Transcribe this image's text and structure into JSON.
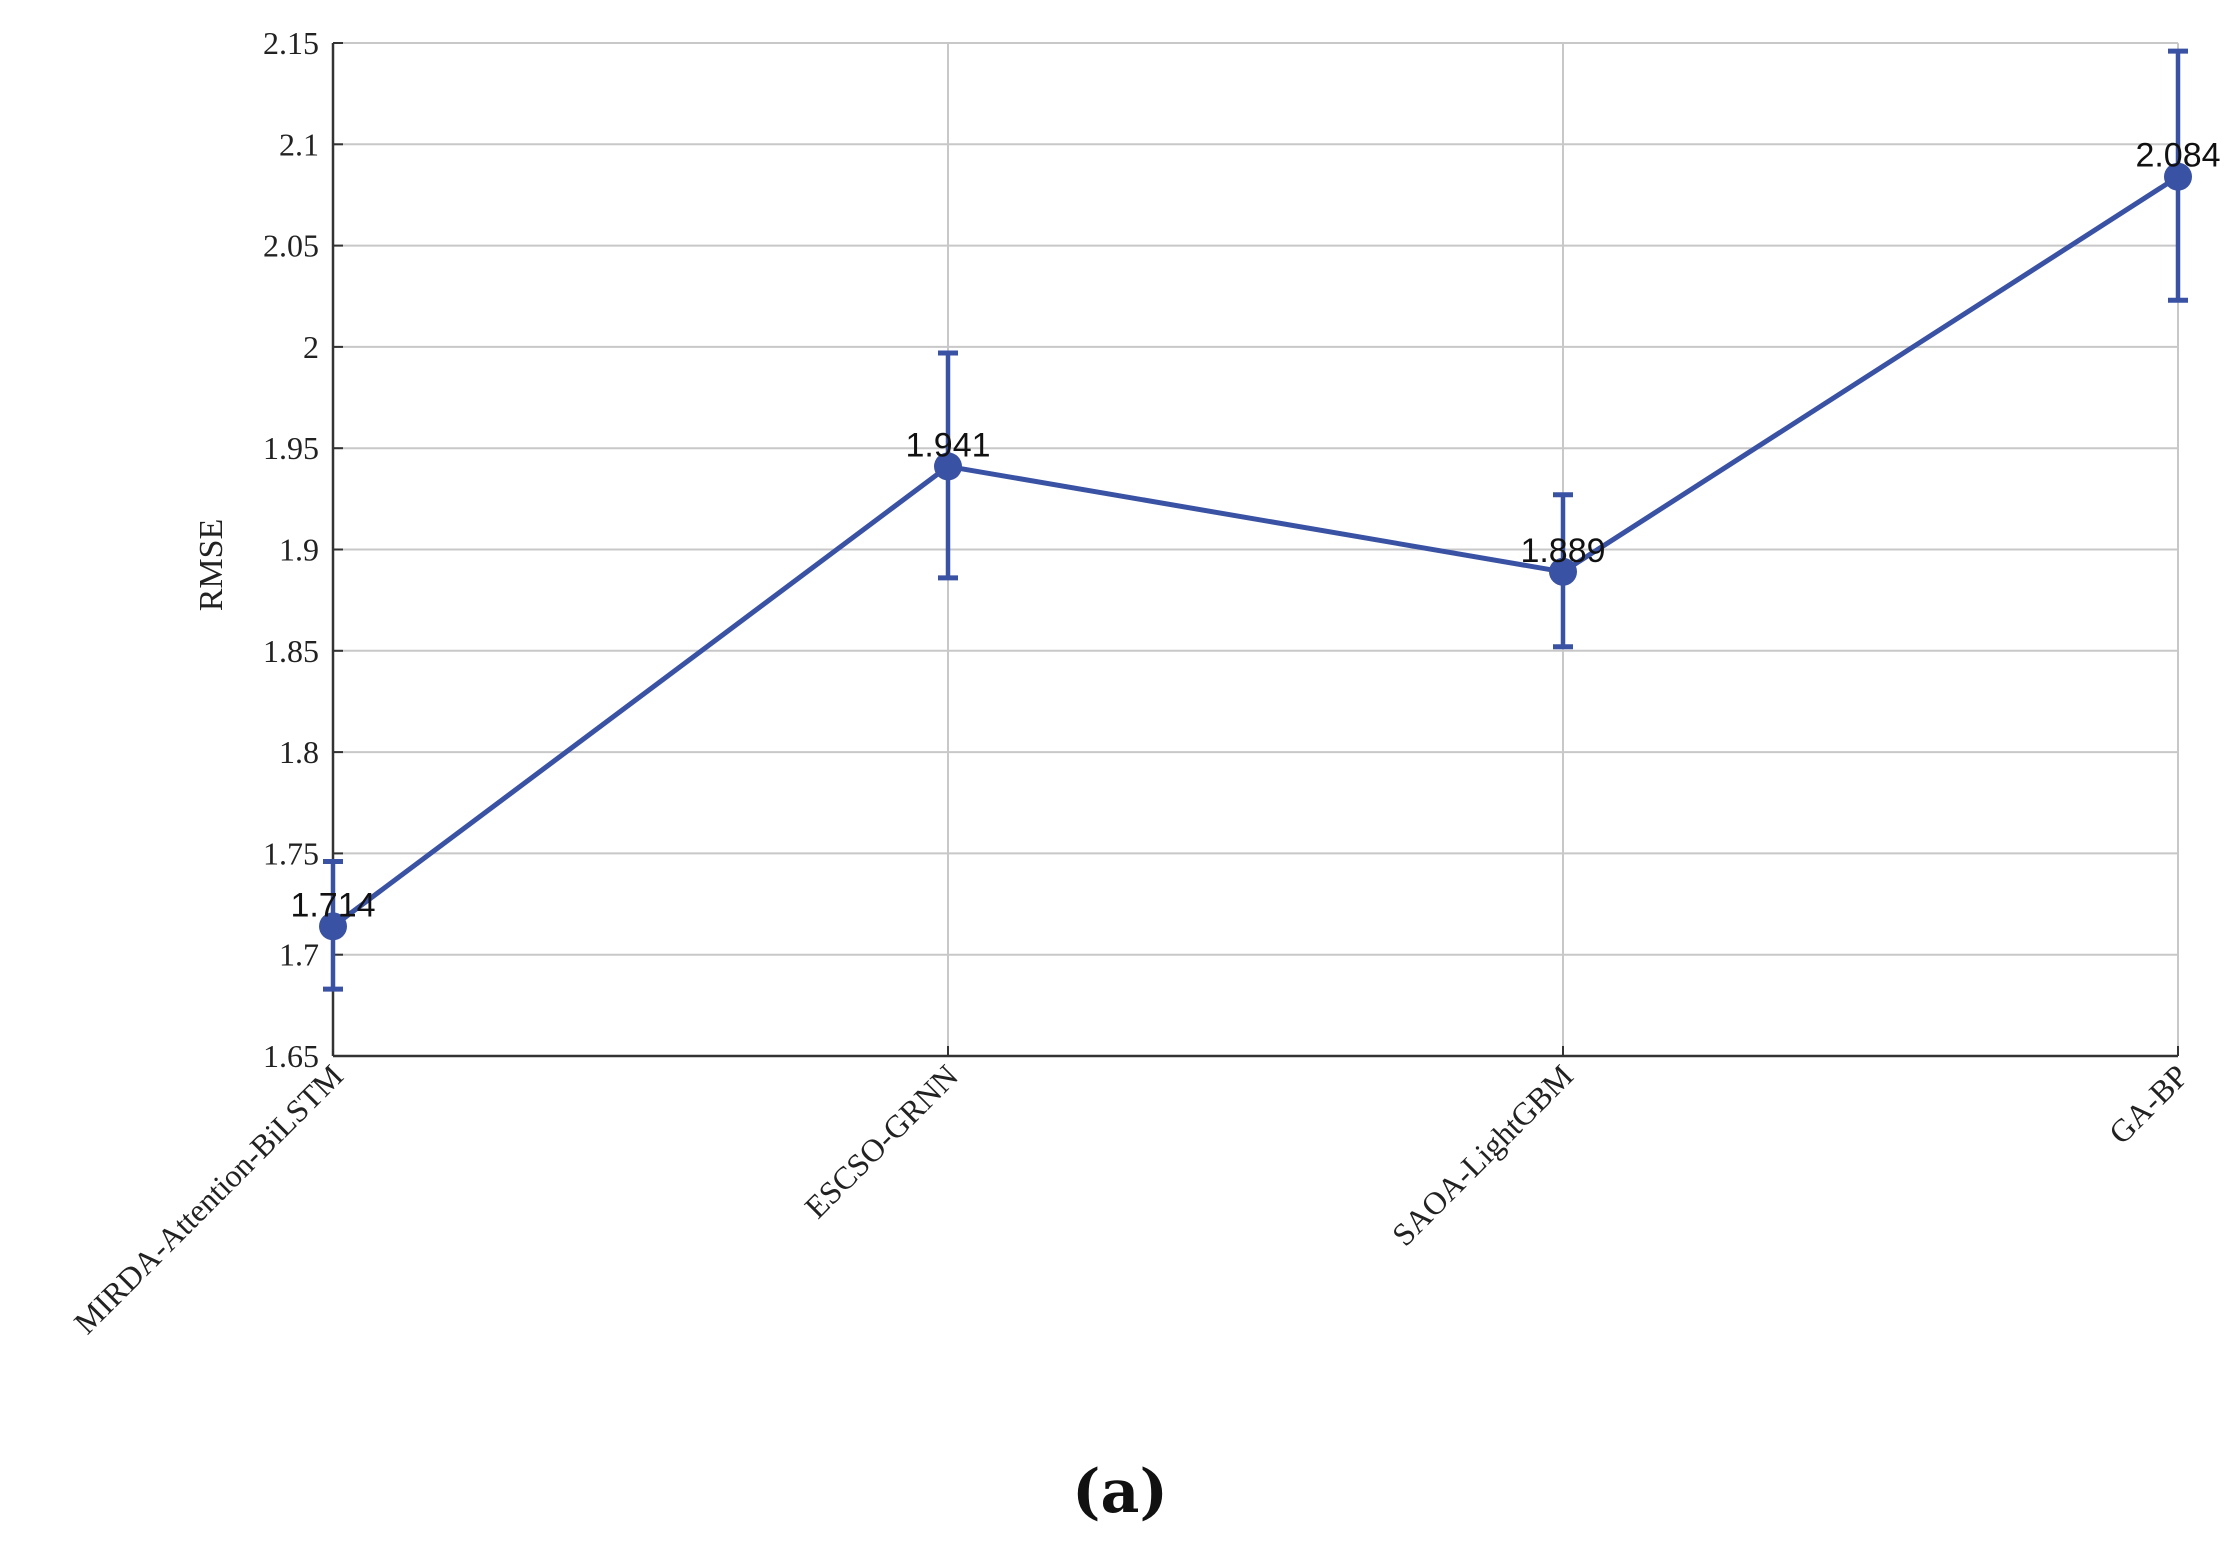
{
  "chart_data": {
    "type": "line",
    "title": "",
    "xlabel": "",
    "ylabel": "RMSE",
    "ylim": [
      1.65,
      2.15
    ],
    "yticks": [
      1.65,
      1.7,
      1.75,
      1.8,
      1.85,
      1.9,
      1.95,
      2,
      2.05,
      2.1,
      2.15
    ],
    "ytick_labels": [
      "1.65",
      "1.7",
      "1.75",
      "1.8",
      "1.85",
      "1.9",
      "1.95",
      "2",
      "2.05",
      "2.1",
      "2.15"
    ],
    "categories": [
      "MIRDA-Attention-BiLSTM",
      "ESCSO-GRNN",
      "SAOA-LightGBM",
      "GA-BP"
    ],
    "series": [
      {
        "values": [
          1.714,
          1.941,
          1.889,
          2.084
        ],
        "error_low": [
          1.683,
          1.886,
          1.852,
          2.023
        ],
        "error_high": [
          1.746,
          1.997,
          1.927,
          2.146
        ],
        "data_labels": [
          "1.714",
          "1.941",
          "1.889",
          "2.084"
        ]
      }
    ],
    "grid": true,
    "legend": "none",
    "colors": {
      "series": "#3a52a4",
      "grid": "#c8c8c8",
      "axis": "#333333"
    }
  },
  "caption": "(a)"
}
